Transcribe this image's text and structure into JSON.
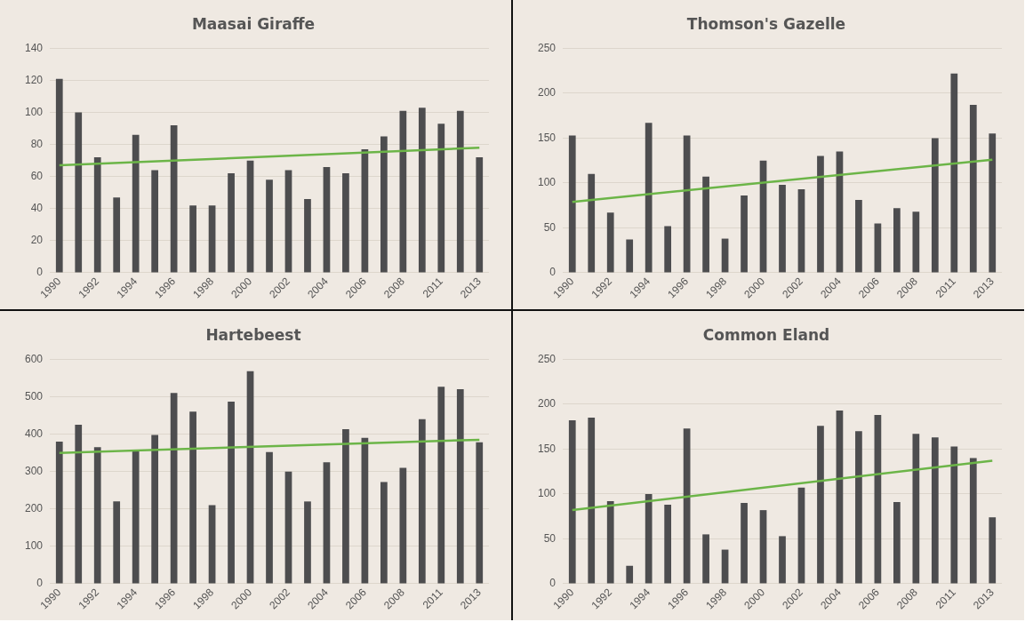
{
  "chart_data": [
    {
      "type": "bar",
      "title": "Maasai Giraffe",
      "categories": [
        "1990",
        null,
        "1992",
        null,
        "1994",
        null,
        "1996",
        null,
        "1998",
        null,
        "2000",
        null,
        "2002",
        null,
        "2004",
        null,
        "2006",
        null,
        "2008",
        null,
        "2011",
        null,
        "2013"
      ],
      "ylim": [
        0,
        140
      ],
      "yticks": [
        0,
        20,
        40,
        60,
        80,
        100,
        120,
        140
      ],
      "grid": "y",
      "series": [
        {
          "color": "#4d4d4f",
          "values": [
            121,
            100,
            72,
            47,
            86,
            64,
            92,
            42,
            42,
            62,
            70,
            58,
            64,
            46,
            66,
            62,
            77,
            85,
            101,
            103,
            93,
            101,
            72
          ]
        },
        {
          "type": "line",
          "color": "#6cb548",
          "values": [
            67,
            null,
            null,
            null,
            null,
            null,
            null,
            null,
            null,
            null,
            null,
            null,
            null,
            null,
            null,
            null,
            null,
            null,
            null,
            null,
            null,
            null,
            78
          ]
        }
      ]
    },
    {
      "type": "bar",
      "title": "Thomson's Gazelle",
      "categories": [
        "1990",
        null,
        "1992",
        null,
        "1994",
        null,
        "1996",
        null,
        "1998",
        null,
        "2000",
        null,
        "2002",
        null,
        "2004",
        null,
        "2006",
        null,
        "2008",
        null,
        "2011",
        null,
        "2013"
      ],
      "ylim": [
        0,
        250
      ],
      "yticks": [
        0,
        50,
        100,
        150,
        200,
        250
      ],
      "grid": "y",
      "series": [
        {
          "color": "#4d4d4f",
          "values": [
            153,
            110,
            67,
            37,
            167,
            52,
            153,
            107,
            38,
            86,
            125,
            98,
            93,
            130,
            135,
            81,
            55,
            72,
            68,
            150,
            222,
            187,
            155
          ]
        },
        {
          "type": "line",
          "color": "#6cb548",
          "values": [
            79,
            null,
            null,
            null,
            null,
            null,
            null,
            null,
            null,
            null,
            null,
            null,
            null,
            null,
            null,
            null,
            null,
            null,
            null,
            null,
            null,
            null,
            126
          ]
        }
      ]
    },
    {
      "type": "bar",
      "title": "Hartebeest",
      "categories": [
        "1990",
        null,
        "1992",
        null,
        "1994",
        null,
        "1996",
        null,
        "1998",
        null,
        "2000",
        null,
        "2002",
        null,
        "2004",
        null,
        "2006",
        null,
        "2008",
        null,
        "2011",
        null,
        "2013"
      ],
      "ylim": [
        0,
        600
      ],
      "yticks": [
        0,
        100,
        200,
        300,
        400,
        500,
        600
      ],
      "grid": "y",
      "series": [
        {
          "color": "#4d4d4f",
          "values": [
            380,
            425,
            365,
            220,
            358,
            398,
            510,
            460,
            210,
            487,
            568,
            352,
            300,
            220,
            325,
            413,
            390,
            272,
            310,
            440,
            527,
            520,
            378
          ]
        },
        {
          "type": "line",
          "color": "#6cb548",
          "values": [
            350,
            null,
            null,
            null,
            null,
            null,
            null,
            null,
            null,
            null,
            null,
            null,
            null,
            null,
            null,
            null,
            null,
            null,
            null,
            null,
            null,
            null,
            385
          ]
        }
      ]
    },
    {
      "type": "bar",
      "title": "Common Eland",
      "categories": [
        "1990",
        null,
        "1992",
        null,
        "1994",
        null,
        "1996",
        null,
        "1998",
        null,
        "2000",
        null,
        "2002",
        null,
        "2004",
        null,
        "2006",
        null,
        "2008",
        null,
        "2011",
        null,
        "2013"
      ],
      "ylim": [
        0,
        250
      ],
      "yticks": [
        0,
        50,
        100,
        150,
        200,
        250
      ],
      "grid": "y",
      "series": [
        {
          "color": "#4d4d4f",
          "values": [
            182,
            185,
            92,
            20,
            100,
            88,
            173,
            55,
            38,
            90,
            82,
            53,
            107,
            176,
            193,
            170,
            188,
            91,
            167,
            163,
            153,
            140,
            74
          ]
        },
        {
          "type": "line",
          "color": "#6cb548",
          "values": [
            82,
            null,
            null,
            null,
            null,
            null,
            null,
            null,
            null,
            null,
            null,
            null,
            null,
            null,
            null,
            null,
            null,
            null,
            null,
            null,
            null,
            null,
            137
          ]
        }
      ]
    }
  ]
}
